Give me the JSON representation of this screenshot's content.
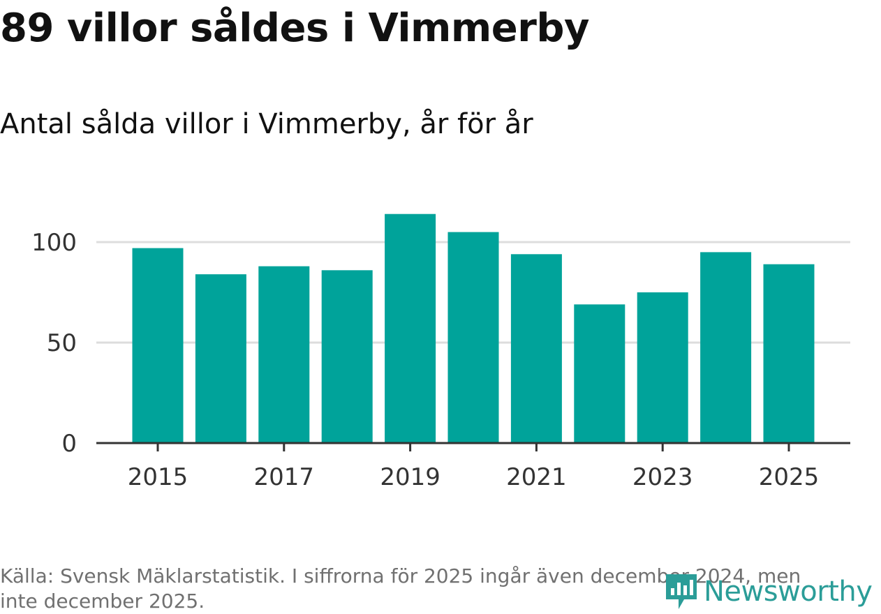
{
  "title": "89 villor såldes i Vimmerby",
  "subtitle": "Antal sålda villor i Vimmerby, år för år",
  "footer": "Källa: Svensk Mäklarstatistik. I siffrorna för 2025 ingår även december 2024, men inte december 2025.",
  "logo": {
    "text": "Newsworthy",
    "icon": "newsworthy-logo-icon"
  },
  "colors": {
    "bar": "#00a39a",
    "grid": "#dddddd",
    "axis": "#333333",
    "logo": "#2b9d98"
  },
  "chart_data": {
    "type": "bar",
    "title": "Antal sålda villor i Vimmerby, år för år",
    "xlabel": "",
    "ylabel": "",
    "categories": [
      2015,
      2016,
      2017,
      2018,
      2019,
      2020,
      2021,
      2022,
      2023,
      2024,
      2025
    ],
    "values": [
      97,
      84,
      88,
      86,
      114,
      105,
      94,
      69,
      75,
      95,
      89
    ],
    "x_tick_labels": [
      "2015",
      "2017",
      "2019",
      "2021",
      "2023",
      "2025"
    ],
    "y_ticks": [
      0,
      50,
      100
    ],
    "ylim": [
      0,
      120
    ],
    "grid": true
  }
}
